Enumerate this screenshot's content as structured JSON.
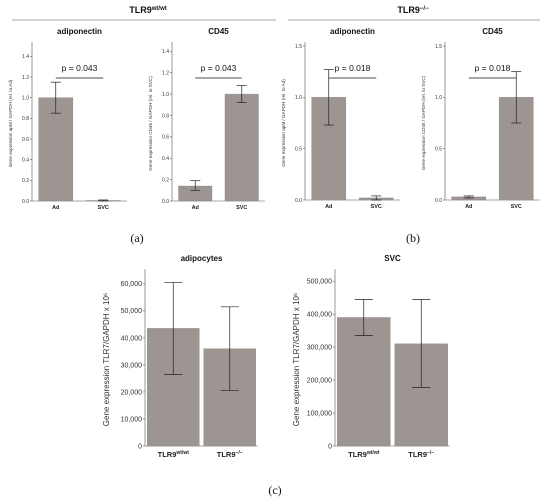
{
  "groups": [
    {
      "label_main": "TLR9",
      "label_sup": "wt/wt"
    },
    {
      "label_main": "TLR9",
      "label_sup": "−/−"
    }
  ],
  "panel_labels": [
    "(a)",
    "(b)",
    "(c)"
  ],
  "bar_color": "#9c9592",
  "chart_data": [
    {
      "type": "bar",
      "title": "adiponectin",
      "ylabel": "Gene expression apM / GAPDH (rel. to Ad)",
      "categories": [
        "Ad",
        "SVC"
      ],
      "values": [
        1.0,
        0.005
      ],
      "errors": [
        [
          0.85,
          1.15
        ],
        [
          0.0,
          0.01
        ]
      ],
      "ylim": [
        0,
        1.5
      ],
      "yticks": [
        "0.0",
        "0.2",
        "0.4",
        "0.6",
        "0.8",
        "1.0",
        "1.2",
        "1.4"
      ],
      "ytick_values": [
        0,
        0.2,
        0.4,
        0.6,
        0.8,
        1.0,
        1.2,
        1.4
      ],
      "annotation": "p = 0.043"
    },
    {
      "type": "bar",
      "title": "CD45",
      "ylabel": "Gene expression CD45 / GAPDH (rel. to SVC)",
      "categories": [
        "Ad",
        "SVC"
      ],
      "values": [
        0.14,
        1.0
      ],
      "errors": [
        [
          0.1,
          0.19
        ],
        [
          0.92,
          1.08
        ]
      ],
      "ylim": [
        0,
        1.45
      ],
      "yticks": [
        "0.0",
        "0.2",
        "0.4",
        "0.6",
        "0.8",
        "1.0",
        "1.2",
        "1.4"
      ],
      "ytick_values": [
        0,
        0.2,
        0.4,
        0.6,
        0.8,
        1.0,
        1.2,
        1.4
      ],
      "annotation": "p = 0.043"
    },
    {
      "type": "bar",
      "title": "adiponectin",
      "ylabel": "Gene expression apM / GAPDH (rel. to Ad)",
      "categories": [
        "Ad",
        "SVC"
      ],
      "values": [
        1.0,
        0.02
      ],
      "errors": [
        [
          0.73,
          1.27
        ],
        [
          0.0,
          0.04
        ]
      ],
      "ylim": [
        0,
        1.5
      ],
      "yticks": [
        "0.0",
        "0.5",
        "1.0",
        "1.5"
      ],
      "ytick_values": [
        0,
        0.5,
        1.0,
        1.5
      ],
      "annotation": "p = 0.018"
    },
    {
      "type": "bar",
      "title": "CD45",
      "ylabel": "Gene expression CD45 / GAPDH (rel. to SVC)",
      "categories": [
        "Ad",
        "SVC"
      ],
      "values": [
        0.03,
        1.0
      ],
      "errors": [
        [
          0.02,
          0.04
        ],
        [
          0.75,
          1.25
        ]
      ],
      "ylim": [
        0,
        1.5
      ],
      "yticks": [
        "0.0",
        "0.5",
        "1.0",
        "1.5"
      ],
      "ytick_values": [
        0,
        0.5,
        1.0,
        1.5
      ],
      "annotation": "p = 0.018"
    },
    {
      "type": "bar",
      "title": "adipocytes",
      "ylabel": "Gene expression TLR7/GAPDH x 10⁶",
      "categories": [
        "TLR9wt/wt",
        "TLR9−/−"
      ],
      "category_main": [
        "TLR9",
        "TLR9"
      ],
      "category_sup": [
        "wt/wt",
        "−/−"
      ],
      "values": [
        43500,
        36000
      ],
      "errors": [
        [
          26500,
          60500
        ],
        [
          20500,
          51500
        ]
      ],
      "ylim": [
        0,
        64000
      ],
      "yticks": [
        "0",
        "10,000",
        "20,000",
        "30,000",
        "40,000",
        "50,000",
        "60,000"
      ],
      "ytick_values": [
        0,
        10000,
        20000,
        30000,
        40000,
        50000,
        60000
      ]
    },
    {
      "type": "bar",
      "title": "SVC",
      "ylabel": "Gene expression TLR7/GAPDH x 10⁶",
      "categories": [
        "TLR9wt/wt",
        "TLR9−/−"
      ],
      "category_main": [
        "TLR9",
        "TLR9"
      ],
      "category_sup": [
        "wt/wt",
        "−/−"
      ],
      "values": [
        390000,
        310000
      ],
      "errors": [
        [
          335000,
          445000
        ],
        [
          178000,
          445000
        ]
      ],
      "ylim": [
        0,
        525000
      ],
      "yticks": [
        "0",
        "100,000",
        "200,000",
        "300,000",
        "400,000",
        "500,000"
      ],
      "ytick_values": [
        0,
        100000,
        200000,
        300000,
        400000,
        500000
      ]
    }
  ]
}
